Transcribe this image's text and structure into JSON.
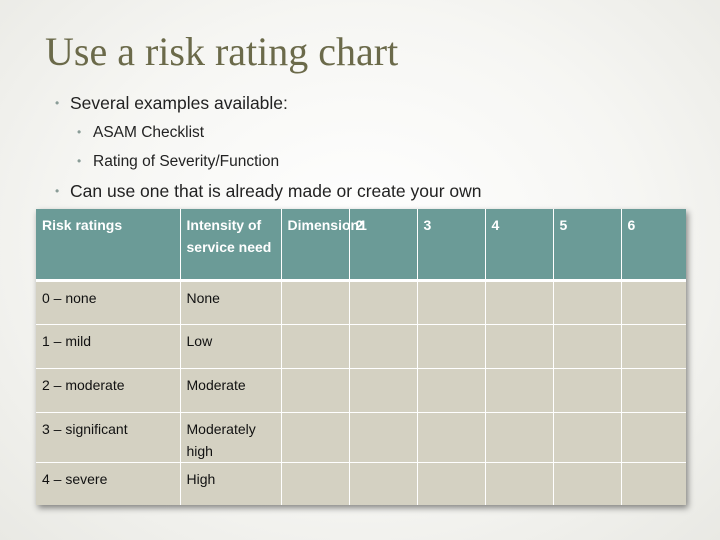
{
  "slide": {
    "title": "Use a risk rating chart",
    "bullets": {
      "b1": "Several examples available:",
      "b1_sub": [
        "ASAM Checklist",
        "Rating of Severity/Function"
      ],
      "b2": "Can use one that is already made or create your own"
    }
  },
  "table": {
    "headers": [
      "Risk ratings",
      "Intensity of service need",
      "Dimension1",
      "2",
      "3",
      "4",
      "5",
      "6"
    ],
    "rows": [
      [
        "0 – none",
        "None",
        "",
        "",
        "",
        "",
        "",
        ""
      ],
      [
        "1 – mild",
        "Low",
        "",
        "",
        "",
        "",
        "",
        ""
      ],
      [
        "2 – moderate",
        "Moderate",
        "",
        "",
        "",
        "",
        "",
        ""
      ],
      [
        "3 – significant",
        "Moderately high",
        "",
        "",
        "",
        "",
        "",
        ""
      ],
      [
        "4 – severe",
        "High",
        "",
        "",
        "",
        "",
        "",
        ""
      ]
    ]
  },
  "colors": {
    "title": "#6b6a4a",
    "header_bg": "#6b9b97",
    "cell_bg": "#d4d1c2",
    "bullet": "#8a9c97"
  }
}
